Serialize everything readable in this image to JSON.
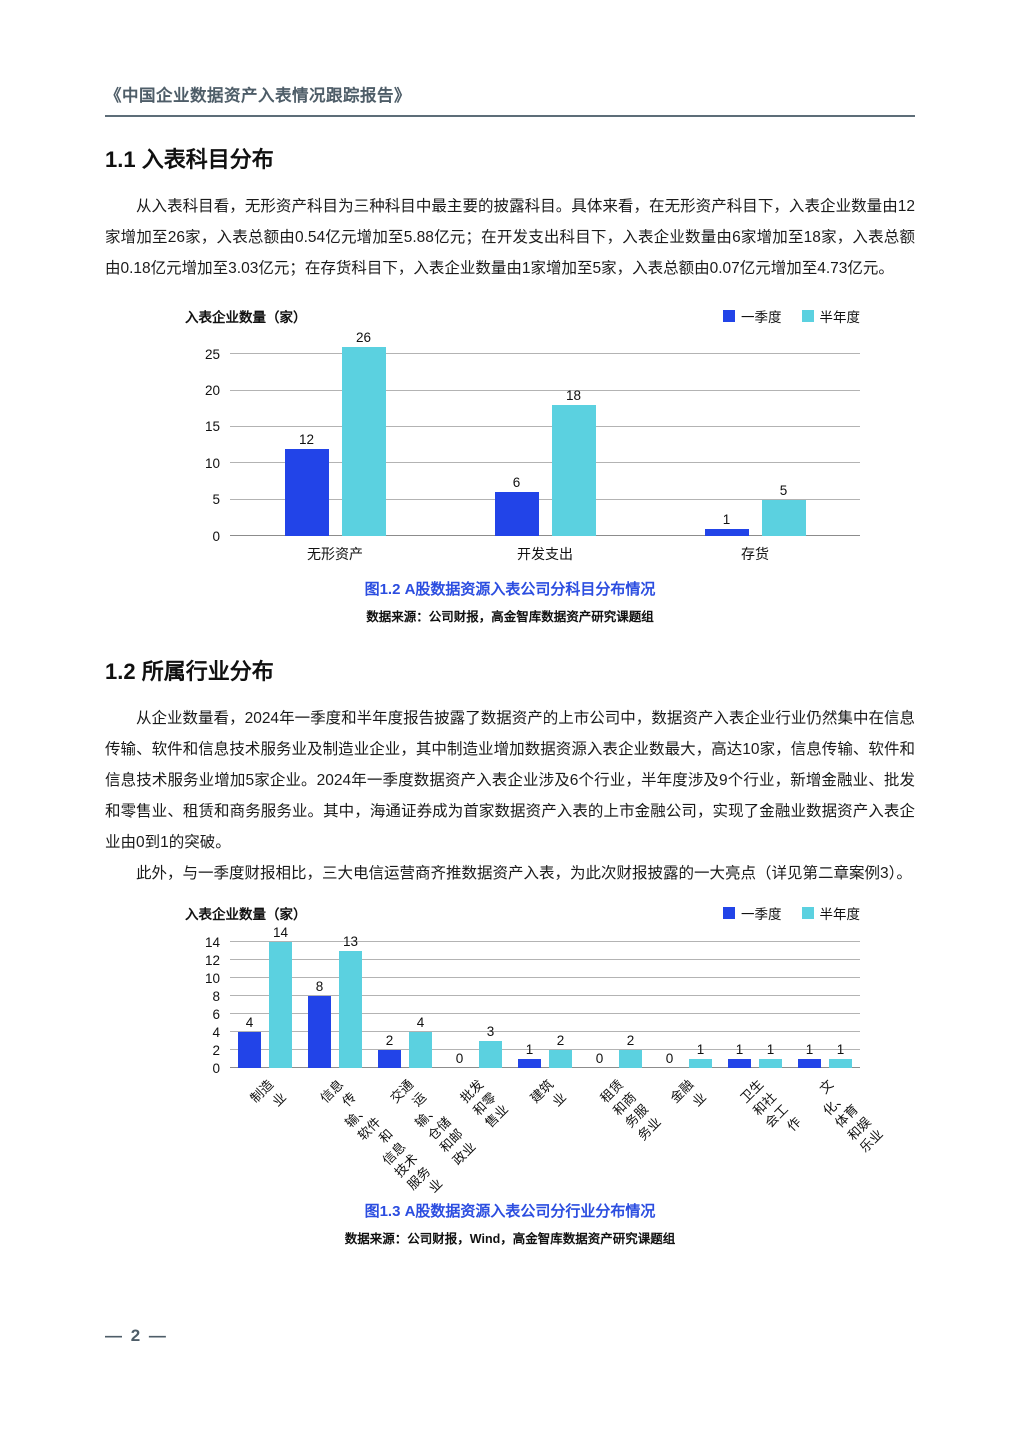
{
  "page": {
    "header_title": "《中国企业数据资产入表情况跟踪报告》",
    "page_number": "— 2 —"
  },
  "sections": [
    {
      "heading": "1.1 入表科目分布",
      "paragraphs": [
        "从入表科目看，无形资产科目为三种科目中最主要的披露科目。具体来看，在无形资产科目下，入表企业数量由12家增加至26家，入表总额由0.54亿元增加至5.88亿元；在开发支出科目下，入表企业数量由6家增加至18家，入表总额由0.18亿元增加至3.03亿元；在存货科目下，入表企业数量由1家增加至5家，入表总额由0.07亿元增加至4.73亿元。"
      ]
    },
    {
      "heading": "1.2 所属行业分布",
      "paragraphs": [
        "从企业数量看，2024年一季度和半年度报告披露了数据资产的上市公司中，数据资产入表企业行业仍然集中在信息传输、软件和信息技术服务业及制造业企业，其中制造业增加数据资源入表企业数最大，高达10家，信息传输、软件和信息技术服务业增加5家企业。2024年一季度数据资产入表企业涉及6个行业，半年度涉及9个行业，新增金融业、批发和零售业、租赁和商务服务业。其中，海通证券成为首家数据资产入表的上市金融公司，实现了金融业数据资产入表企业由0到1的突破。",
        "此外，与一季度财报相比，三大电信运营商齐推数据资产入表，为此次财报披露的一大亮点（详见第二章案例3）。"
      ]
    }
  ],
  "colors": {
    "quarter_blue": "#2244e8",
    "half_year_cyan": "#5bd1e0",
    "caption_blue": "#2b4de0",
    "header_slate": "#4e5d68",
    "gridline_gray": "#b3b3b3"
  },
  "chart_data": [
    {
      "type": "bar",
      "ylabel": "入表企业数量（家）",
      "categories": [
        "无形资产",
        "开发支出",
        "存货"
      ],
      "series": [
        {
          "name": "一季度",
          "color": "#2244e8",
          "values": [
            12,
            6,
            1
          ]
        },
        {
          "name": "半年度",
          "color": "#5bd1e0",
          "values": [
            26,
            18,
            5
          ]
        }
      ],
      "ylim": [
        0,
        25
      ],
      "yticks": [
        0,
        5,
        10,
        15,
        20,
        25
      ],
      "grid": true,
      "legend_position": "top-right",
      "caption": "图1.2 A股数据资源入表公司分科目分布情况",
      "source": "数据来源：公司财报，高金智库数据资产研究课题组"
    },
    {
      "type": "bar",
      "ylabel": "入表企业数量（家）",
      "categories": [
        "制造业",
        "信息传输、软件和\n信息技术服务业",
        "交通运输、仓储和邮政业",
        "批发和零售业",
        "建筑业",
        "租赁和商务服务业",
        "金融业",
        "卫生和社会工作",
        "文化、体育和娱乐业"
      ],
      "series": [
        {
          "name": "一季度",
          "color": "#2244e8",
          "values": [
            4,
            8,
            2,
            0,
            1,
            0,
            0,
            1,
            1
          ]
        },
        {
          "name": "半年度",
          "color": "#5bd1e0",
          "values": [
            14,
            13,
            4,
            3,
            2,
            2,
            1,
            1,
            1
          ]
        }
      ],
      "ylim": [
        0,
        14
      ],
      "yticks": [
        0,
        2,
        4,
        6,
        8,
        10,
        12,
        14
      ],
      "grid": true,
      "legend_position": "top-right",
      "caption": "图1.3 A股数据资源入表公司分行业分布情况",
      "source": "数据来源：公司财报，Wind，高金智库数据资产研究课题组"
    }
  ]
}
